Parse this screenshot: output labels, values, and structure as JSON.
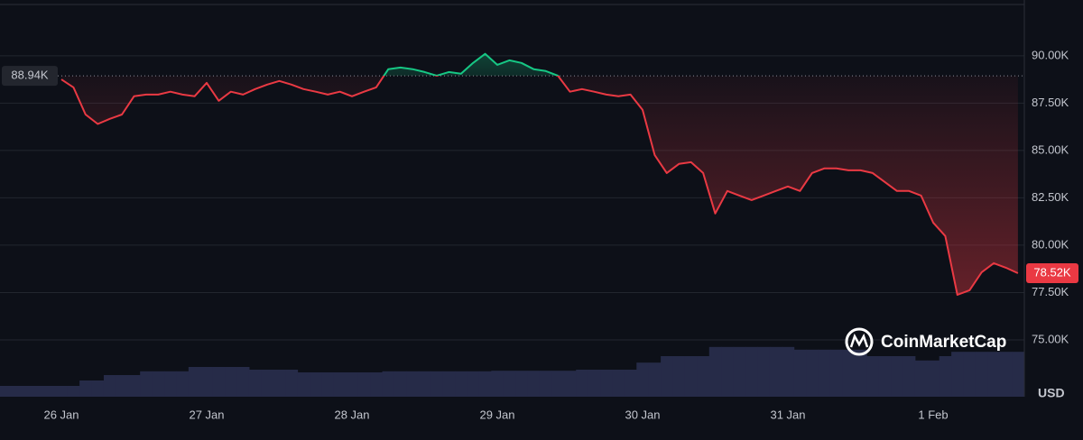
{
  "chart_data": {
    "type": "line",
    "categories": [
      "26 Jan",
      null,
      null,
      null,
      null,
      null,
      null,
      null,
      null,
      null,
      null,
      null,
      "27 Jan",
      null,
      null,
      null,
      null,
      null,
      null,
      null,
      null,
      null,
      null,
      null,
      "28 Jan",
      null,
      null,
      null,
      null,
      null,
      null,
      null,
      null,
      null,
      null,
      null,
      "29 Jan",
      null,
      null,
      null,
      null,
      null,
      null,
      null,
      null,
      null,
      null,
      null,
      "30 Jan",
      null,
      null,
      null,
      null,
      null,
      null,
      null,
      null,
      null,
      null,
      null,
      "31 Jan",
      null,
      null,
      null,
      null,
      null,
      null,
      null,
      null,
      null,
      null,
      null,
      "1 Feb",
      null,
      null,
      null,
      null,
      null,
      null,
      null
    ],
    "values": [
      88750,
      88330,
      86900,
      86400,
      86670,
      86900,
      87860,
      87950,
      87950,
      88100,
      87950,
      87860,
      88570,
      87620,
      88100,
      87950,
      88240,
      88480,
      88670,
      88480,
      88240,
      88100,
      87950,
      88100,
      87860,
      88100,
      88330,
      89290,
      89380,
      89290,
      89140,
      88950,
      89140,
      89050,
      89620,
      90100,
      89520,
      89760,
      89620,
      89290,
      89190,
      88950,
      88100,
      88240,
      88100,
      87950,
      87860,
      87950,
      87140,
      84760,
      83810,
      84290,
      84380,
      83810,
      81670,
      82860,
      82620,
      82380,
      82620,
      82860,
      83100,
      82860,
      83810,
      84050,
      84050,
      83950,
      83950,
      83810,
      83340,
      82860,
      82860,
      82620,
      81190,
      80480,
      77380,
      77620,
      78570,
      79050,
      78810,
      78520
    ],
    "volume": [
      20,
      20,
      30,
      30,
      40,
      40,
      40,
      47,
      47,
      47,
      47,
      55,
      55,
      55,
      55,
      55,
      50,
      50,
      50,
      50,
      45,
      45,
      45,
      45,
      45,
      45,
      45,
      47,
      47,
      47,
      47,
      47,
      47,
      47,
      47,
      47,
      48,
      48,
      48,
      48,
      48,
      48,
      48,
      50,
      50,
      50,
      50,
      50,
      63,
      63,
      75,
      75,
      75,
      75,
      92,
      92,
      92,
      92,
      92,
      92,
      92,
      87,
      87,
      87,
      87,
      87,
      87,
      75,
      75,
      75,
      75,
      67,
      67,
      75,
      83,
      83,
      83,
      83,
      83,
      83
    ],
    "volume_color": "#262b48",
    "up_color": "#16c784",
    "down_color": "#ea3943",
    "reference_value": 88940,
    "reference_label": "88.94K",
    "last_value_label": "78.52K",
    "ylim": [
      72000,
      92800
    ],
    "yticks": [
      {
        "value": 75000,
        "label": "75.00K"
      },
      {
        "value": 77500,
        "label": "77.50K"
      },
      {
        "value": 80000,
        "label": "80.00K"
      },
      {
        "value": 82500,
        "label": "82.50K"
      },
      {
        "value": 85000,
        "label": "85.00K"
      },
      {
        "value": 87500,
        "label": "87.50K"
      },
      {
        "value": 90000,
        "label": "90.00K"
      }
    ],
    "grid": true,
    "currency_label": "USD",
    "watermark": "CoinMarketCap"
  }
}
